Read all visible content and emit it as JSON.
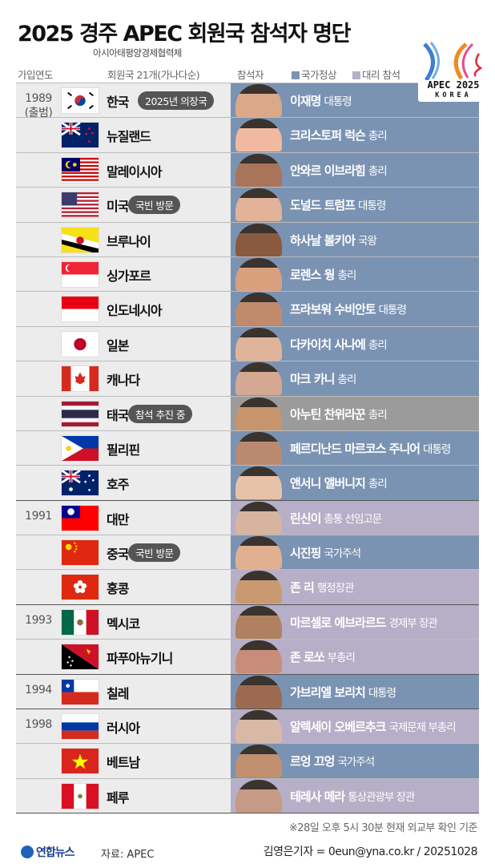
{
  "title": "2025 경주 APEC 회원국 참석자 명단",
  "subtitle": "아시아태평양경제협력체",
  "logo": {
    "line1": "APEC 2025",
    "line2": "KOREA"
  },
  "headers": {
    "year": "가입연도",
    "countries": "회원국 21개(가나다순)",
    "attendee": "참석자",
    "legend_head": "국가정상",
    "legend_proxy": "대리 참석"
  },
  "colors": {
    "head_of_state": "#7b93b3",
    "proxy": "#b7afc7",
    "pending": "#9b9b9b",
    "left_bg": "#ececec"
  },
  "rows": [
    {
      "year": "1989",
      "year_note": "(출범)",
      "country": "한국",
      "flag": "kr",
      "badge": "2025년 의장국",
      "name": "이재명",
      "role": "대통령",
      "type": "head"
    },
    {
      "country": "뉴질랜드",
      "flag": "nz",
      "name": "크리스토퍼 럭슨",
      "role": "총리",
      "type": "head"
    },
    {
      "country": "말레이시아",
      "flag": "my",
      "name": "안와르 이브라힘",
      "role": "총리",
      "type": "head"
    },
    {
      "country": "미국",
      "flag": "us",
      "badge": "국빈 방문",
      "name": "도널드 트럼프",
      "role": "대통령",
      "type": "head"
    },
    {
      "country": "브루나이",
      "flag": "bn",
      "name": "하사날 볼키아",
      "role": "국왕",
      "type": "head"
    },
    {
      "country": "싱가포르",
      "flag": "sg",
      "name": "로렌스 웡",
      "role": "총리",
      "type": "head"
    },
    {
      "country": "인도네시아",
      "flag": "id",
      "name": "프라보워 수비안토",
      "role": "대통령",
      "type": "head"
    },
    {
      "country": "일본",
      "flag": "jp",
      "name": "다카이치 사나에",
      "role": "총리",
      "type": "head"
    },
    {
      "country": "캐나다",
      "flag": "ca",
      "name": "마크 카니",
      "role": "총리",
      "type": "head"
    },
    {
      "country": "태국",
      "flag": "th",
      "badge": "참석 추진 중",
      "name": "아누틴 찬위라꾼",
      "role": "총리",
      "type": "pending"
    },
    {
      "country": "필리핀",
      "flag": "ph",
      "name": "페르디난드 마르코스 주니어",
      "role": "대통령",
      "type": "head"
    },
    {
      "country": "호주",
      "flag": "au",
      "name": "앤서니 앨버니지",
      "role": "총리",
      "type": "head"
    },
    {
      "year": "1991",
      "country": "대만",
      "flag": "tw",
      "name": "린신이",
      "role": "총통 선임고문",
      "type": "proxy"
    },
    {
      "country": "중국",
      "flag": "cn",
      "badge": "국빈 방문",
      "name": "시진핑",
      "role": "국가주석",
      "type": "head"
    },
    {
      "country": "홍콩",
      "flag": "hk",
      "name": "존 리",
      "role": "행정장관",
      "type": "proxy"
    },
    {
      "year": "1993",
      "country": "멕시코",
      "flag": "mx",
      "name": "마르셀로 에브라르드",
      "role": "경제부 장관",
      "type": "proxy"
    },
    {
      "country": "파푸아뉴기니",
      "flag": "pg",
      "name": "존 로쏘",
      "role": "부총리",
      "type": "proxy"
    },
    {
      "year": "1994",
      "country": "칠레",
      "flag": "cl",
      "name": "가브리엘 보리치",
      "role": "대통령",
      "type": "head"
    },
    {
      "year": "1998",
      "country": "러시아",
      "flag": "ru",
      "name": "알렉세이 오베르추크",
      "role": "국제문제 부총리",
      "type": "proxy"
    },
    {
      "country": "베트남",
      "flag": "vn",
      "name": "르엉 끄엉",
      "role": "국가주석",
      "type": "head"
    },
    {
      "country": "페루",
      "flag": "pe",
      "name": "테레사 메라",
      "role": "통상관광부 장관",
      "type": "proxy"
    }
  ],
  "footer": {
    "note": "※28일 오후 5시 30분 현재 외교부 확인 기준",
    "brand": "연합뉴스",
    "source": "자료: APEC",
    "credit": "김영은기자 = 0eun@yna.co.kr / 20251028"
  }
}
